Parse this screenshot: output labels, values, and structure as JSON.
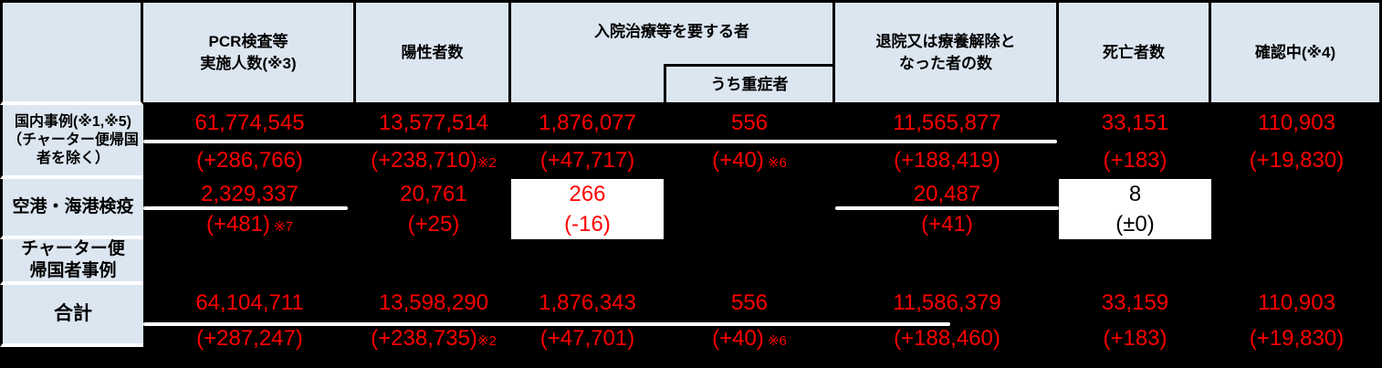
{
  "colors": {
    "header_bg": "#dce6f1",
    "header_text": "#000000",
    "table_bg": "#000000",
    "value_text": "#ff0000",
    "highlight_cell_bg": "#ffffff",
    "highlight_cell_text": "#000000",
    "separator_line": "#ffffff"
  },
  "header": {
    "corner": "",
    "pcr": "PCR検査等\n実施人数(※3)",
    "positive": "陽性者数",
    "hospitalized": "入院治療等を要する者",
    "severe": "うち重症者",
    "discharged": "退院又は療養解除と\nなった者の数",
    "deaths": "死亡者数",
    "confirming": "確認中(※4)"
  },
  "rows": [
    {
      "label": "国内事例(※1,※5)\n（チャーター便帰国\n者を除く）",
      "pcr": {
        "v": "61,774,545",
        "d": "(+286,766)"
      },
      "positive": {
        "v": "13,577,514",
        "d": "(+238,710)",
        "note": "※2"
      },
      "hospitalized": {
        "v": "1,876,077",
        "d": "(+47,717)"
      },
      "severe": {
        "v": "556",
        "d": "(+40)",
        "note": " ※6"
      },
      "discharged": {
        "v": "11,565,877",
        "d": "(+188,419)"
      },
      "deaths": {
        "v": "33,151",
        "d": "(+183)"
      },
      "confirming": {
        "v": "110,903",
        "d": "(+19,830)"
      }
    },
    {
      "label": "空港・海港検疫",
      "pcr": {
        "v": "2,329,337",
        "d": "(+481)",
        "note": " ※7"
      },
      "positive": {
        "v": "20,761",
        "d": "(+25)"
      },
      "hospitalized": {
        "v": "266",
        "d": "(-16)"
      },
      "discharged": {
        "v": "20,487",
        "d": "(+41)"
      },
      "deaths": {
        "v": "8",
        "d": "(±0)"
      }
    },
    {
      "label": "チャーター便\n帰国者事例"
    },
    {
      "label": "合計",
      "pcr": {
        "v": "64,104,711",
        "d": "(+287,247)"
      },
      "positive": {
        "v": "13,598,290",
        "d": "(+238,735)",
        "note": "※2"
      },
      "hospitalized": {
        "v": "1,876,343",
        "d": "(+47,701)"
      },
      "severe": {
        "v": "556",
        "d": "(+40)",
        "note": " ※6"
      },
      "discharged": {
        "v": "11,586,379",
        "d": "(+188,460)"
      },
      "deaths": {
        "v": "33,159",
        "d": "(+183)"
      },
      "confirming": {
        "v": "110,903",
        "d": "(+19,830)"
      }
    }
  ]
}
